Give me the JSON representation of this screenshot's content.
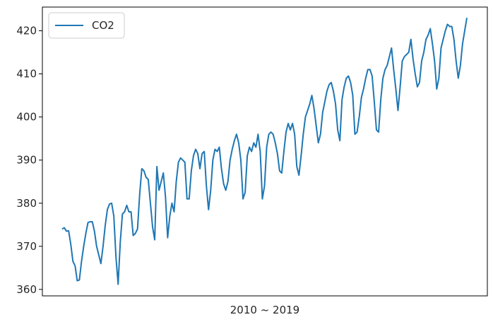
{
  "chart_data": {
    "type": "line",
    "title": "",
    "xlabel": "2010 ~ 2019",
    "ylabel": "",
    "ylim": [
      358.5,
      425.5
    ],
    "yticks": [
      360,
      370,
      380,
      390,
      400,
      410,
      420
    ],
    "grid": false,
    "legend_position": "top-left",
    "series": [
      {
        "name": "CO2",
        "color": "#1f77b4",
        "values": [
          374.0,
          374.3,
          373.5,
          373.6,
          370.5,
          366.5,
          365.5,
          362.0,
          362.2,
          366.5,
          370.0,
          373.0,
          375.5,
          375.7,
          375.7,
          373.5,
          370.0,
          368.0,
          366.0,
          370.0,
          374.8,
          378.5,
          379.8,
          380.0,
          377.0,
          367.5,
          361.2,
          371.0,
          377.5,
          378.0,
          379.5,
          378.0,
          378.0,
          372.5,
          373.0,
          374.0,
          382.0,
          388.0,
          387.5,
          386.0,
          385.5,
          380.0,
          374.5,
          371.5,
          388.5,
          383.0,
          385.0,
          387.0,
          381.5,
          372.0,
          377.0,
          380.0,
          378.0,
          385.0,
          389.5,
          390.5,
          390.0,
          389.5,
          381.0,
          381.0,
          387.5,
          391.0,
          392.5,
          391.5,
          388.0,
          391.5,
          392.0,
          384.0,
          378.5,
          383.0,
          390.0,
          392.5,
          392.0,
          393.0,
          388.0,
          384.5,
          383.0,
          385.0,
          390.0,
          392.5,
          394.5,
          396.0,
          394.0,
          390.0,
          381.0,
          382.5,
          391.0,
          393.0,
          392.0,
          394.0,
          393.0,
          396.0,
          392.0,
          381.0,
          384.0,
          393.0,
          396.0,
          396.5,
          396.0,
          394.0,
          391.5,
          387.5,
          387.0,
          392.0,
          396.5,
          398.5,
          397.0,
          398.5,
          396.0,
          388.5,
          386.5,
          391.0,
          396.0,
          400.0,
          401.5,
          403.0,
          405.0,
          402.0,
          398.0,
          394.0,
          396.0,
          401.0,
          403.5,
          406.0,
          407.5,
          408.0,
          406.0,
          403.0,
          397.0,
          394.5,
          404.0,
          407.0,
          409.0,
          409.5,
          408.0,
          405.0,
          396.0,
          396.5,
          400.0,
          404.5,
          406.5,
          409.0,
          411.0,
          411.0,
          409.5,
          403.5,
          397.0,
          396.5,
          404.0,
          409.0,
          411.0,
          412.0,
          414.0,
          416.0,
          411.0,
          406.5,
          401.5,
          407.0,
          413.0,
          414.0,
          414.5,
          415.0,
          418.0,
          413.5,
          410.0,
          407.0,
          408.0,
          413.0,
          415.0,
          418.0,
          419.0,
          420.5,
          417.0,
          413.0,
          406.5,
          409.0,
          416.0,
          418.0,
          420.0,
          421.5,
          421.0,
          421.0,
          418.0,
          413.0,
          409.0,
          412.0,
          417.0,
          420.0,
          423.0
        ]
      }
    ]
  }
}
